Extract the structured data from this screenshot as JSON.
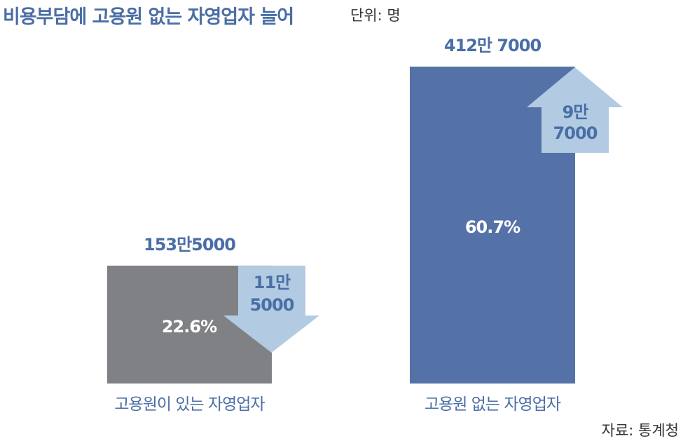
{
  "title": "비용부담에 고용원 없는 자영업자 늘어",
  "unit": "단위: 명",
  "source": "자료: 통계청",
  "colors": {
    "title": "#4a6ea6",
    "bar_with_employees": "#808184",
    "bar_without_employees": "#5572a8",
    "arrow": "#b2cbe2",
    "arrow_text": "#4a6ea6",
    "label": "#4a6ea6",
    "value_label": "#4a6ea6",
    "share_label": "#ffffff"
  },
  "chart_data": {
    "type": "bar",
    "categories": [
      "고용원이 있는 자영업자",
      "고용원 없는 자영업자"
    ],
    "values": [
      1535000,
      4127000
    ],
    "value_labels": [
      "153만5000",
      "412만 7000"
    ],
    "share_labels": [
      "22.6%",
      "60.7%"
    ],
    "changes": [
      {
        "direction": "down",
        "value": -115000,
        "label_lines": [
          "11만",
          "5000"
        ]
      },
      {
        "direction": "up",
        "value": 97000,
        "label_lines": [
          "9만",
          "7000"
        ]
      }
    ],
    "ylim": [
      0,
      4127000
    ],
    "grid": false,
    "legend": "none"
  }
}
